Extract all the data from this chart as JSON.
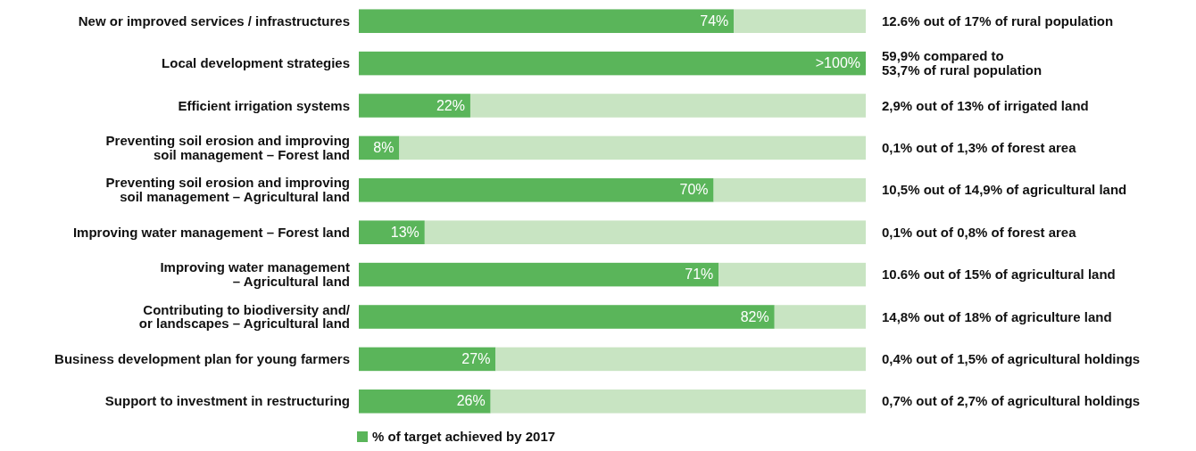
{
  "chart_data": {
    "type": "bar",
    "orientation": "horizontal",
    "stacked": true,
    "categories": [
      "New or improved services / infrastructures",
      "Local development strategies",
      "Efficient irrigation systems",
      "Preventing soil erosion and improving\nsoil management – Forest land",
      "Preventing soil erosion and improving\nsoil management – Agricultural land",
      "Improving water management – Forest land",
      "Improving water management\n– Agricultural land",
      "Contributing to biodiversity and/\nor landscapes – Agricultural land",
      "Business development plan for young farmers",
      "Support to investment in restructuring"
    ],
    "series": [
      {
        "name": "% of target achieved by 2017",
        "color": "#5ab55a",
        "values": [
          74,
          100,
          22,
          8,
          70,
          13,
          71,
          82,
          27,
          26
        ],
        "value_labels": [
          "74%",
          ">100%",
          "22%",
          "8%",
          "70%",
          "13%",
          "71%",
          "82%",
          "27%",
          "26%"
        ]
      },
      {
        "color": "#c8e4c2",
        "values": [
          26,
          0,
          78,
          92,
          30,
          87,
          29,
          18,
          73,
          74
        ]
      }
    ],
    "xlim": [
      0,
      100
    ],
    "tick_labels": "y",
    "legend": "bottom",
    "annotations": [
      "12.6% out of 17% of rural population",
      "59,9% compared to\n53,7% of rural population",
      "2,9% out of 13% of irrigated land",
      "0,1% out of 1,3% of forest area",
      "10,5% out of 14,9% of agricultural land",
      "0,1% out of 0,8% of forest area",
      "10.6% out of 15% of agricultural land",
      "14,8% out of 18% of agriculture land",
      "0,4% out of 1,5% of agricultural holdings",
      "0,7% out of 2,7% of agricultural holdings"
    ]
  }
}
